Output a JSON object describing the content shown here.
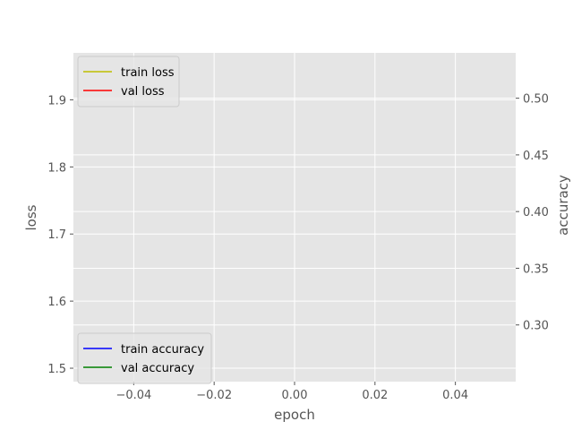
{
  "chart_data": {
    "type": "line",
    "title": "",
    "xlabel": "epoch",
    "ylabel_left": "loss",
    "ylabel_right": "accuracy",
    "xlim": [
      -0.055,
      0.055
    ],
    "ylim_left": [
      1.48,
      1.97
    ],
    "ylim_right": [
      0.25,
      0.54
    ],
    "xticks": [
      -0.04,
      -0.02,
      0.0,
      0.02,
      0.04
    ],
    "xtick_labels": [
      "−0.04",
      "−0.02",
      "0.00",
      "0.02",
      "0.04"
    ],
    "yticks_left": [
      1.5,
      1.6,
      1.7,
      1.8,
      1.9
    ],
    "ytick_labels_left": [
      "1.5",
      "1.6",
      "1.7",
      "1.8",
      "1.9"
    ],
    "yticks_right": [
      0.3,
      0.35,
      0.4,
      0.45,
      0.5
    ],
    "ytick_labels_right": [
      "0.30",
      "0.35",
      "0.40",
      "0.45",
      "0.50"
    ],
    "grid": true,
    "series": [
      {
        "name": "train loss",
        "axis": "left",
        "color": "#bfbf00",
        "x": [],
        "y": []
      },
      {
        "name": "val loss",
        "axis": "left",
        "color": "#ff0000",
        "x": [],
        "y": []
      },
      {
        "name": "train accuracy",
        "axis": "right",
        "color": "#0000ff",
        "x": [],
        "y": []
      },
      {
        "name": "val accuracy",
        "axis": "right",
        "color": "#008000",
        "x": [],
        "y": []
      }
    ],
    "legends": [
      {
        "placement": "upper left",
        "entries": [
          "train loss",
          "val loss"
        ]
      },
      {
        "placement": "lower left",
        "entries": [
          "train accuracy",
          "val accuracy"
        ]
      }
    ],
    "colors": {
      "plot_background": "#e5e5e5",
      "grid": "#ffffff",
      "text": "#555555"
    }
  }
}
